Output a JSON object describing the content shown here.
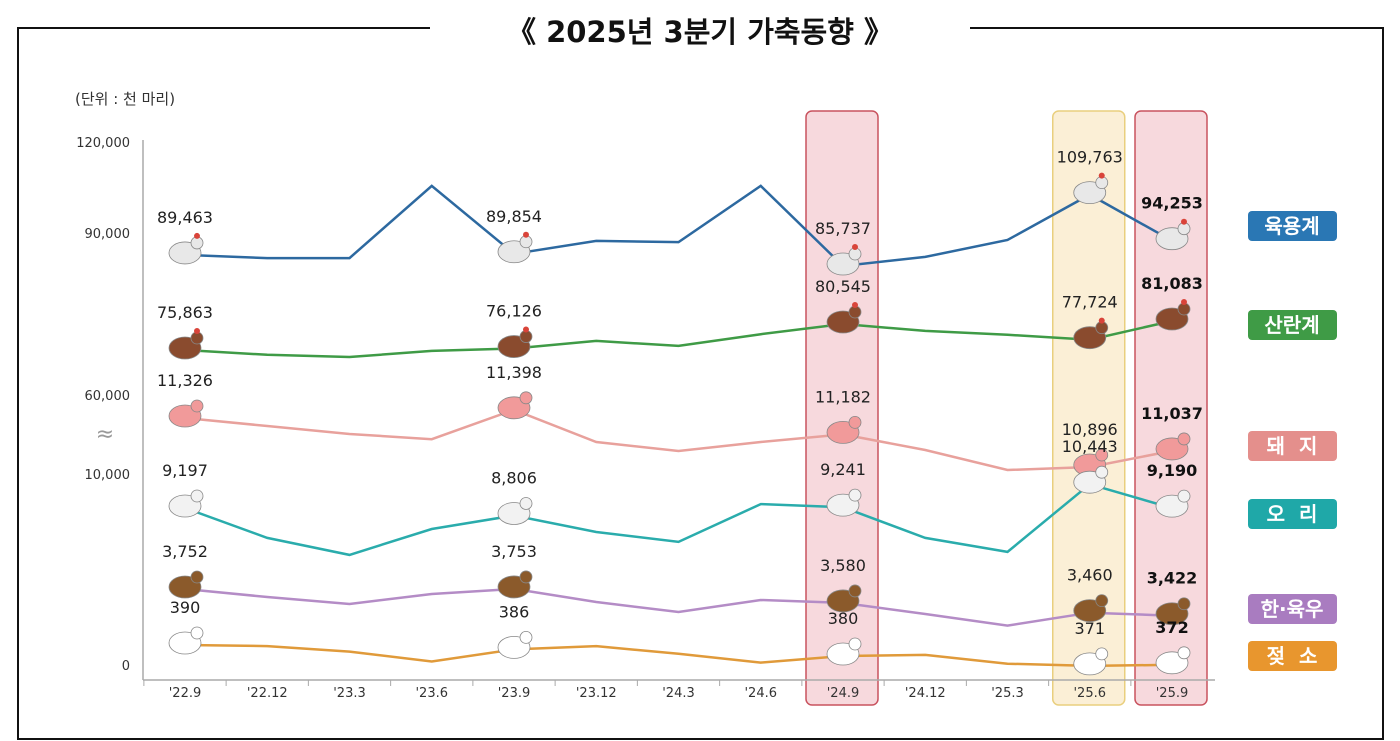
{
  "chart_data": {
    "type": "line",
    "title": "《 2025년 3분기 가축동향 》",
    "unit_label": "(단위 : 천 마리)",
    "categories": [
      "'22.9",
      "'22.12",
      "'23.3",
      "'23.6",
      "'23.9",
      "'23.12",
      "'24.3",
      "'24.6",
      "'24.9",
      "'24.12",
      "'25.3",
      "'25.6",
      "'25.9"
    ],
    "y_ticks": [
      "120,000",
      "90,000",
      "60,000",
      "10,000",
      "0"
    ],
    "axis_break": "≈",
    "ylim": [
      0,
      120000
    ],
    "grid": false,
    "legend_placement": "right",
    "highlighted_categories": [
      {
        "category": "'24.9",
        "color": "#f7d9dd"
      },
      {
        "category": "'25.6",
        "color": "#fbefd6"
      },
      {
        "category": "'25.9",
        "color": "#f7d9dd"
      }
    ],
    "labeled_indices": [
      0,
      4,
      8,
      11,
      12
    ],
    "bold_index": 12,
    "series": [
      {
        "name": "육용계",
        "color": "#2d69a0",
        "badge_color": "#2a77b4",
        "icon": "broiler-chicken-icon",
        "values": [
          89463,
          88400,
          88400,
          112700,
          89854,
          94200,
          93800,
          112700,
          85737,
          88800,
          94500,
          109763,
          94253
        ],
        "labels": [
          "89,463",
          "",
          "",
          "",
          "89,854",
          "",
          "",
          "",
          "85,737",
          "",
          "",
          "109,763",
          "94,253"
        ]
      },
      {
        "name": "산란계",
        "color": "#3f9b46",
        "badge_color": "#3f9b46",
        "icon": "laying-hen-icon",
        "values": [
          75863,
          75000,
          74600,
          75700,
          76126,
          77500,
          76600,
          78700,
          80545,
          79300,
          78600,
          77724,
          81083
        ],
        "labels": [
          "75,863",
          "",
          "",
          "",
          "76,126",
          "",
          "",
          "",
          "80,545",
          "",
          "",
          "77,724",
          "81,083"
        ]
      },
      {
        "name": "돼  지",
        "color": "#e8a19c",
        "badge_color": "#e48f8c",
        "icon": "pig-icon",
        "values": [
          11326,
          11256,
          11186,
          11140,
          11398,
          11115,
          11036,
          11115,
          11182,
          11045,
          10870,
          10896,
          11037
        ],
        "labels": [
          "11,326",
          "",
          "",
          "",
          "11,398",
          "",
          "",
          "",
          "11,182",
          "",
          "",
          "10,896",
          "11,037"
        ]
      },
      {
        "name": "오  리",
        "color": "#2aacac",
        "badge_color": "#1fa8a8",
        "icon": "duck-icon",
        "values": [
          9197,
          7630,
          6740,
          8100,
          8806,
          7940,
          7420,
          9400,
          9241,
          7630,
          6900,
          10443,
          9190
        ],
        "labels": [
          "9,197",
          "",
          "",
          "",
          "8,806",
          "",
          "",
          "",
          "9,241",
          "",
          "",
          "10,443",
          "9,190"
        ]
      },
      {
        "name": "한·육우",
        "color": "#b48cc6",
        "badge_color": "#a97cc0",
        "icon": "beef-cattle-icon",
        "values": [
          3752,
          3653,
          3567,
          3690,
          3753,
          3592,
          3468,
          3616,
          3580,
          3443,
          3300,
          3460,
          3422
        ],
        "labels": [
          "3,752",
          "",
          "",
          "",
          "3,753",
          "",
          "",
          "",
          "3,580",
          "",
          "",
          "3,460",
          "3,422"
        ]
      },
      {
        "name": "젖  소",
        "color": "#e09a3a",
        "badge_color": "#e8962e",
        "icon": "dairy-cow-icon",
        "values": [
          390,
          389,
          384,
          375,
          386,
          389,
          382,
          374,
          380,
          381,
          373,
          371,
          372
        ],
        "labels": [
          "390",
          "",
          "",
          "",
          "386",
          "",
          "",
          "",
          "380",
          "",
          "",
          "371",
          "372"
        ]
      }
    ]
  }
}
